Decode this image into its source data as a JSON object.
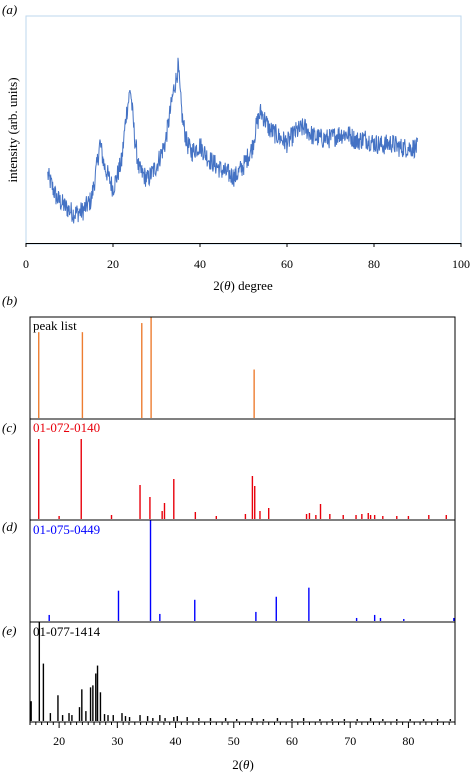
{
  "chart_data": [
    {
      "type": "line",
      "panel_label": "(a)",
      "xlabel_prefix": "2(",
      "xlabel_symbol": "θ",
      "xlabel_suffix": ") degree",
      "ylabel": "intensity (arb. units)",
      "xlim": [
        0,
        100
      ],
      "xticks": [
        0,
        20,
        40,
        60,
        80,
        100
      ],
      "ylim": [
        0,
        100
      ],
      "grid": false,
      "line_color": "#4472C4",
      "frame_color": "#bdd7ee",
      "series": [
        {
          "x": [
            5,
            7,
            9,
            11,
            13,
            15,
            16,
            17,
            18,
            20,
            22,
            23,
            24,
            25,
            26,
            28,
            30,
            32,
            33,
            34,
            34.5,
            35,
            35.5,
            36,
            37,
            38,
            40,
            42,
            45,
            48,
            50,
            52,
            53,
            54,
            55,
            56,
            58,
            60,
            62,
            64,
            66,
            68,
            70,
            72,
            74,
            76,
            78,
            80,
            82,
            84,
            86,
            88,
            90
          ],
          "y": [
            30,
            20,
            16,
            13,
            14,
            19,
            30,
            44,
            34,
            24,
            36,
            56,
            68,
            46,
            32,
            28,
            34,
            44,
            56,
            68,
            72,
            78,
            64,
            54,
            44,
            40,
            43,
            37,
            32,
            29,
            34,
            42,
            52,
            58,
            54,
            50,
            47,
            44,
            49,
            51,
            47,
            46,
            46,
            48,
            48,
            45,
            46,
            44,
            43,
            44,
            42,
            42,
            42
          ]
        }
      ]
    },
    {
      "type": "bar",
      "panel_label": "(b)",
      "name": "peak list",
      "color": "#ED7D31",
      "xlim": [
        15,
        88
      ],
      "ylim": [
        0,
        100
      ],
      "x": [
        16.5,
        24,
        34.2,
        35.8,
        53.5
      ],
      "values": [
        85,
        85,
        94,
        100,
        48
      ]
    },
    {
      "type": "bar",
      "panel_label": "(c)",
      "name": "01-072-0140",
      "color": "#e8000b",
      "xlim": [
        15,
        88
      ],
      "ylim": [
        0,
        100
      ],
      "x": [
        16.5,
        20,
        23.8,
        29,
        33.9,
        35.6,
        37.7,
        38.1,
        39.7,
        43.4,
        47,
        52,
        53.2,
        53.6,
        54.5,
        56,
        62.5,
        63,
        64.1,
        64.9,
        66.5,
        68.8,
        71,
        72,
        73.1,
        73.5,
        74.2,
        75.6,
        78,
        80,
        83.5,
        86.5
      ],
      "values": [
        80,
        3,
        80,
        4,
        34,
        22,
        8,
        16,
        40,
        7,
        3,
        5,
        43,
        33,
        8,
        11,
        5,
        6,
        4,
        15,
        5,
        4,
        4,
        5,
        6,
        4,
        4,
        3,
        3,
        3,
        4,
        4
      ]
    },
    {
      "type": "bar",
      "panel_label": "(d)",
      "name": "01-075-0449",
      "color": "#0000ff",
      "xlim": [
        15,
        88
      ],
      "ylim": [
        0,
        100
      ],
      "x": [
        18.3,
        30.2,
        35.7,
        37.3,
        43.3,
        53.8,
        57.3,
        62.9,
        71.1,
        74.2,
        75.2,
        79.2,
        87.8
      ],
      "values": [
        6,
        30,
        100,
        7,
        21,
        9,
        24,
        33,
        3,
        6,
        3,
        2,
        3
      ]
    },
    {
      "type": "bar",
      "panel_label": "(e)",
      "name": "01-077-1414",
      "color": "#000000",
      "xlim": [
        15,
        88
      ],
      "ylim": [
        0,
        100
      ],
      "xticks": [
        20,
        30,
        40,
        50,
        60,
        70,
        80
      ],
      "xlabel_prefix": "2(",
      "xlabel_symbol": "θ",
      "xlabel_suffix": ")",
      "x": [
        15.2,
        16.6,
        17.3,
        18.5,
        19.8,
        20.6,
        21.7,
        22.2,
        23.5,
        23.9,
        24.6,
        25.4,
        25.8,
        26.3,
        26.6,
        27.1,
        27.8,
        28.4,
        29.3,
        30.8,
        31.4,
        32.1,
        33.9,
        35.2,
        36.1,
        37.3,
        38.2,
        39.7,
        40.3,
        42,
        44,
        46,
        48.6,
        50.5,
        53.2,
        55.1,
        57.5,
        60,
        62,
        64.8,
        66.9,
        69,
        71.2,
        73.5,
        75.6,
        78,
        80.3,
        82.6,
        85,
        87.2
      ],
      "values": [
        20,
        100,
        58,
        8,
        26,
        6,
        8,
        6,
        14,
        32,
        10,
        34,
        36,
        48,
        56,
        29,
        7,
        6,
        6,
        8,
        5,
        4,
        6,
        5,
        3,
        6,
        3,
        4,
        5,
        4,
        3,
        3,
        3,
        2,
        3,
        2,
        3,
        2,
        3,
        2,
        2,
        2,
        2,
        3,
        2,
        2,
        2,
        2,
        2,
        2
      ]
    }
  ]
}
